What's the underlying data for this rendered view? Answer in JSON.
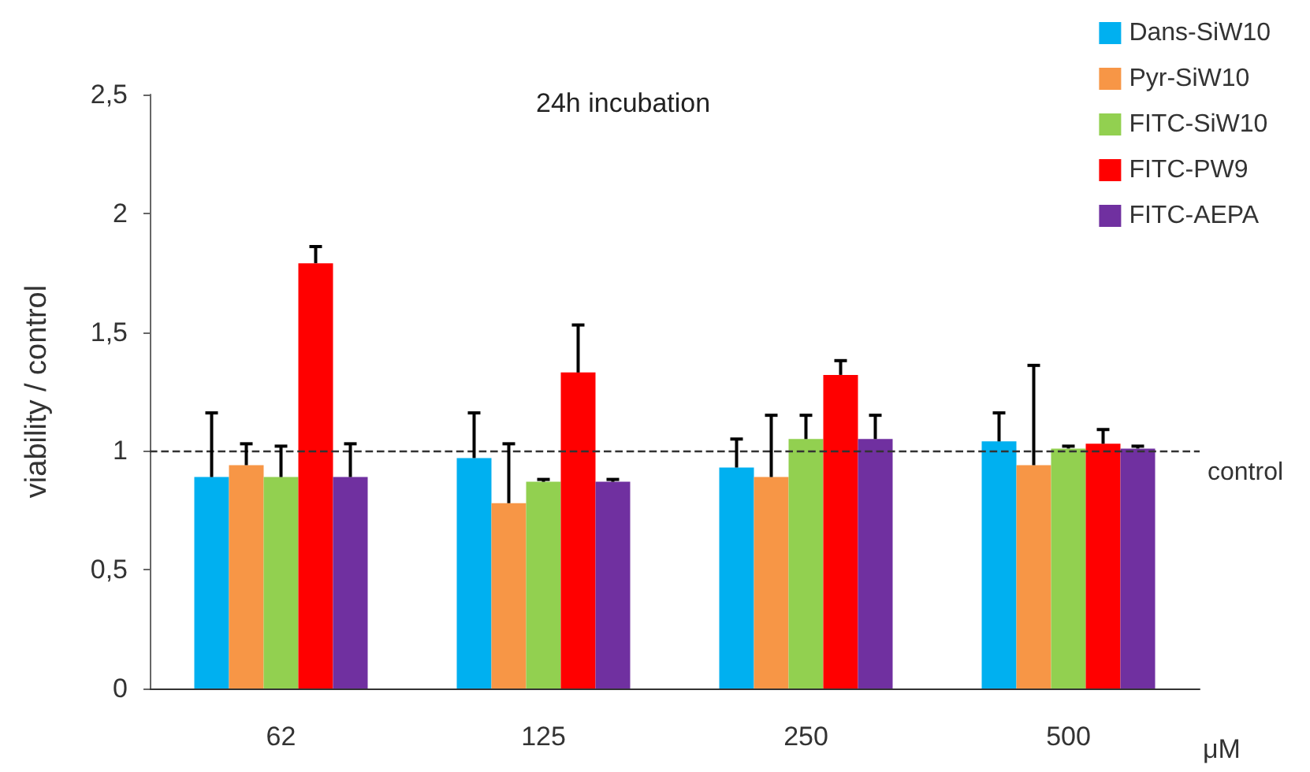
{
  "chart_data": {
    "type": "bar",
    "title": "24h incubation",
    "xlabel": "μM",
    "ylabel": "viability / control",
    "categories": [
      "62",
      "125",
      "250",
      "500"
    ],
    "series": [
      {
        "name": "Dans-SiW10",
        "color": "#00b0f0",
        "values": [
          0.89,
          0.97,
          0.93,
          1.04
        ],
        "errors": [
          [
            0.89,
            1.16
          ],
          [
            0.97,
            1.16
          ],
          [
            0.93,
            1.05
          ],
          [
            1.04,
            1.16
          ]
        ]
      },
      {
        "name": "Pyr-SiW10",
        "color": "#f79646",
        "values": [
          0.94,
          0.78,
          0.89,
          0.94
        ],
        "errors": [
          [
            0.94,
            1.03
          ],
          [
            0.78,
            1.03
          ],
          [
            0.89,
            1.15
          ],
          [
            0.94,
            1.36
          ]
        ]
      },
      {
        "name": "FITC-SiW10",
        "color": "#92d050",
        "values": [
          0.89,
          0.87,
          1.05,
          1.01
        ],
        "errors": [
          [
            0.89,
            1.02
          ],
          [
            0.87,
            0.88
          ],
          [
            1.05,
            1.15
          ],
          [
            1.01,
            1.02
          ]
        ]
      },
      {
        "name": "FITC-PW9",
        "color": "#ff0000",
        "values": [
          1.79,
          1.33,
          1.32,
          1.03
        ],
        "errors": [
          [
            1.79,
            1.86
          ],
          [
            1.33,
            1.53
          ],
          [
            1.32,
            1.38
          ],
          [
            1.03,
            1.09
          ]
        ]
      },
      {
        "name": "FITC-AEPA",
        "color": "#7030a0",
        "values": [
          0.89,
          0.87,
          1.05,
          1.01
        ],
        "errors": [
          [
            0.89,
            1.03
          ],
          [
            0.87,
            0.88
          ],
          [
            1.05,
            1.15
          ],
          [
            1.01,
            1.02
          ]
        ]
      }
    ],
    "ylim": [
      0,
      2.5
    ],
    "yticks": [
      0,
      {
        "value": 0.5,
        "label": "0,5"
      },
      1,
      {
        "value": 1.5,
        "label": "1,5"
      },
      2,
      {
        "value": 2.5,
        "label": "2,5"
      }
    ],
    "ref_lines": [
      {
        "axis": "y",
        "value": 1,
        "label": "control",
        "line_style": "dashed",
        "color": "#333333"
      }
    ],
    "legend": "top right",
    "grid": false
  }
}
